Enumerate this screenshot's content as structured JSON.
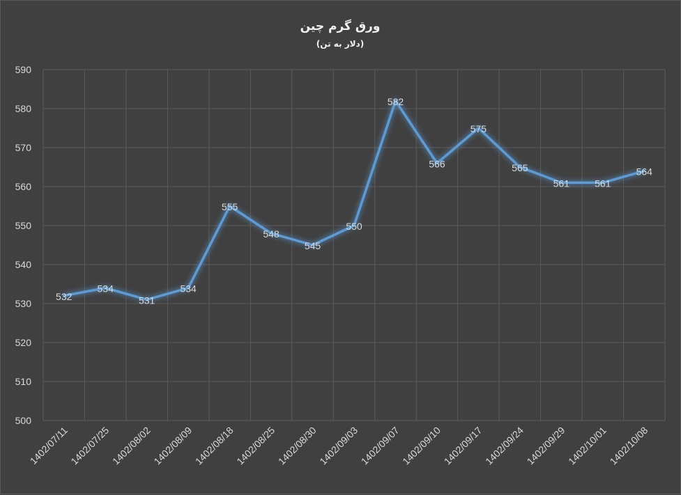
{
  "chart_data": {
    "type": "line",
    "title": "ورق گرم چین",
    "subtitle": "(دلار به تن)",
    "categories": [
      "1402/07/11",
      "1402/07/25",
      "1402/08/02",
      "1402/08/09",
      "1402/08/18",
      "1402/08/25",
      "1402/08/30",
      "1402/09/03",
      "1402/09/07",
      "1402/09/10",
      "1402/09/17",
      "1402/09/24",
      "1402/09/29",
      "1402/10/01",
      "1402/10/08"
    ],
    "series": [
      {
        "values": [
          532,
          534,
          531,
          534,
          555,
          548,
          545,
          550,
          582,
          566,
          575,
          565,
          561,
          561,
          564
        ]
      }
    ],
    "ylim": [
      500,
      590
    ],
    "yticks": [
      500,
      510,
      520,
      530,
      540,
      550,
      560,
      570,
      580,
      590
    ],
    "grid": true,
    "legend": "none",
    "data_labels": true,
    "line_color": "#5b9bd5",
    "label_color": "#d9d9d9",
    "background": "#404040"
  }
}
